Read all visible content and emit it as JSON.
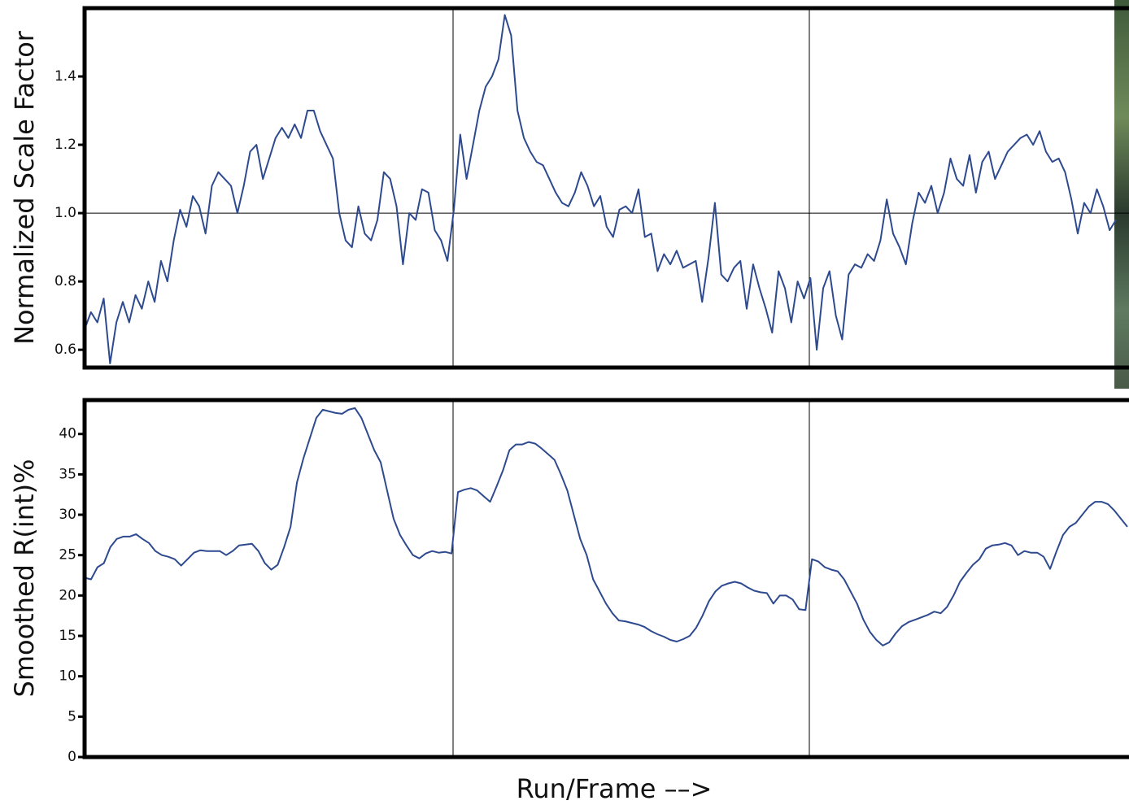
{
  "chart_data": [
    {
      "type": "line",
      "ylabel": "Normalized Scale Factor",
      "ylim": [
        0.548,
        1.6
      ],
      "yticks": [
        0.6,
        0.8,
        {
          "value": 1,
          "label": "1.0"
        },
        1.2,
        1.4
      ],
      "reference_line": 1.0,
      "series": [
        {
          "color": "#2e4a8f",
          "values": [
            0.66,
            0.71,
            0.68,
            0.75,
            0.56,
            0.68,
            0.74,
            0.68,
            0.76,
            0.72,
            0.8,
            0.74,
            0.86,
            0.8,
            0.92,
            1.01,
            0.96,
            1.05,
            1.02,
            0.94,
            1.08,
            1.12,
            1.1,
            1.08,
            1.0,
            1.08,
            1.18,
            1.2,
            1.1,
            1.16,
            1.22,
            1.25,
            1.22,
            1.26,
            1.22,
            1.3,
            1.3,
            1.24,
            1.2,
            1.16,
            1.0,
            0.92,
            0.9,
            1.02,
            0.94,
            0.92,
            0.98,
            1.12,
            1.1,
            1.02,
            0.85,
            1.0,
            0.98,
            1.07,
            1.06,
            0.95,
            0.92,
            0.86,
            1.01,
            1.23,
            1.1,
            1.2,
            1.3,
            1.37,
            1.4,
            1.45,
            1.58,
            1.52,
            1.3,
            1.22,
            1.18,
            1.15,
            1.14,
            1.1,
            1.06,
            1.03,
            1.02,
            1.06,
            1.12,
            1.08,
            1.02,
            1.05,
            0.96,
            0.93,
            1.01,
            1.02,
            1.0,
            1.07,
            0.93,
            0.94,
            0.83,
            0.88,
            0.85,
            0.89,
            0.84,
            0.85,
            0.86,
            0.74,
            0.87,
            1.03,
            0.82,
            0.8,
            0.84,
            0.86,
            0.72,
            0.85,
            0.78,
            0.72,
            0.65,
            0.83,
            0.78,
            0.68,
            0.8,
            0.75,
            0.81,
            0.6,
            0.78,
            0.83,
            0.7,
            0.63,
            0.82,
            0.85,
            0.84,
            0.88,
            0.86,
            0.92,
            1.04,
            0.94,
            0.9,
            0.85,
            0.97,
            1.06,
            1.03,
            1.08,
            1.0,
            1.06,
            1.16,
            1.1,
            1.08,
            1.17,
            1.06,
            1.15,
            1.18,
            1.1,
            1.14,
            1.18,
            1.2,
            1.22,
            1.23,
            1.2,
            1.24,
            1.18,
            1.15,
            1.16,
            1.12,
            1.04,
            0.94,
            1.03,
            1.0,
            1.07,
            1.02,
            0.95,
            0.98
          ]
        }
      ]
    },
    {
      "type": "line",
      "ylabel": "Smoothed R(int)%",
      "xlabel": "Run/Frame ––>",
      "ylim": [
        0,
        44.2
      ],
      "yticks": [
        0,
        5,
        10,
        15,
        20,
        25,
        30,
        35,
        40
      ],
      "series": [
        {
          "color": "#2e4a8f",
          "values": [
            22.2,
            22.0,
            23.5,
            24.0,
            26,
            27,
            27.3,
            27.3,
            27.6,
            27,
            26.5,
            25.5,
            25,
            24.8,
            24.5,
            23.7,
            24.5,
            25.3,
            25.6,
            25.5,
            25.5,
            25.5,
            25,
            25.5,
            26.2,
            26.3,
            26.4,
            25.5,
            24,
            23.2,
            23.8,
            26,
            28.5,
            34,
            37,
            39.5,
            42,
            43,
            42.8,
            42.6,
            42.5,
            43,
            43.2,
            42,
            40,
            38,
            36.5,
            33,
            29.5,
            27.5,
            26.2,
            25,
            24.6,
            25.2,
            25.5,
            25.3,
            25.4,
            25.2,
            32.8,
            33.1,
            33.3,
            33.0,
            32.3,
            31.6,
            33.5,
            35.5,
            38,
            38.7,
            38.7,
            39,
            38.8,
            38.2,
            37.5,
            36.8,
            35,
            33,
            30,
            27,
            25,
            22,
            20.5,
            19,
            17.8,
            16.9,
            16.8,
            16.6,
            16.4,
            16.1,
            15.6,
            15.2,
            14.9,
            14.5,
            14.3,
            14.6,
            15,
            16,
            17.5,
            19.3,
            20.5,
            21.2,
            21.5,
            21.7,
            21.5,
            21,
            20.6,
            20.4,
            20.3,
            19,
            20,
            20,
            19.5,
            18.3,
            18.2,
            24.5,
            24.2,
            23.5,
            23.2,
            23,
            22,
            20.5,
            19,
            17,
            15.5,
            14.5,
            13.8,
            14.2,
            15.3,
            16.2,
            16.7,
            17,
            17.3,
            17.6,
            18,
            17.8,
            18.6,
            20,
            21.7,
            22.8,
            23.8,
            24.5,
            25.8,
            26.2,
            26.3,
            26.5,
            26.2,
            25,
            25.5,
            25.3,
            25.3,
            24.8,
            23.3,
            25.5,
            27.5,
            28.5,
            29,
            30,
            31,
            31.6,
            31.6,
            31.3,
            30.5,
            29.5,
            28.5
          ]
        }
      ]
    }
  ]
}
